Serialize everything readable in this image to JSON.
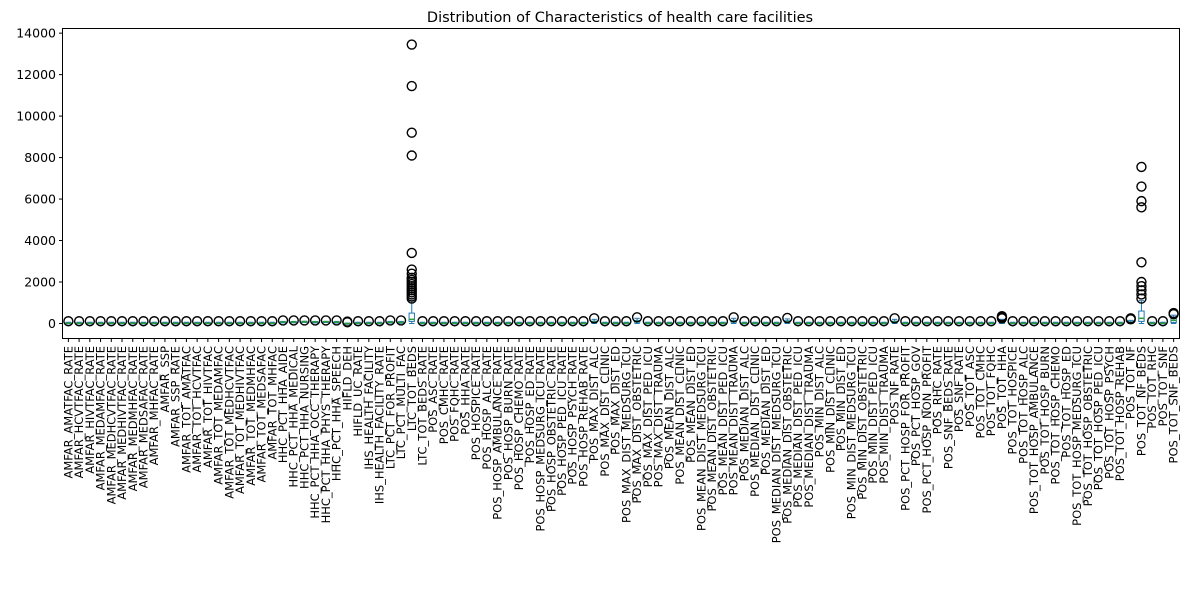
{
  "chart_data": {
    "type": "box",
    "title": "Distribution of Characteristics of health care facilities",
    "xlabel": "",
    "ylabel": "",
    "ylim": [
      -700,
      14200
    ],
    "yticks": [
      0,
      2000,
      4000,
      6000,
      8000,
      10000,
      12000,
      14000
    ],
    "yticklabels": [
      "0",
      "2000",
      "4000",
      "6000",
      "8000",
      "10000",
      "12000",
      "14000"
    ],
    "grid": false,
    "colors": {
      "box": "#1f77b4",
      "median": "#2ca02c",
      "flier": "#000000",
      "axis": "#000000"
    },
    "categories": [
      "AMFAR_AMATFAC_RATE",
      "AMFAR_HCVTFAC_RATE",
      "AMFAR_HIVTFAC_RATE",
      "AMFAR_MEDAMFAC_RATE",
      "AMFAR_MEDHCVTFAC_RATE",
      "AMFAR_MEDHIVTFAC_RATE",
      "AMFAR_MEDMHFAC_RATE",
      "AMFAR_MEDSAFAC_RATE",
      "AMFAR_MHFAC_RATE",
      "AMFAR_SSP",
      "AMFAR_SSP_RATE",
      "AMFAR_TOT_AMATFAC",
      "AMFAR_TOT_HCVTFAC",
      "AMFAR_TOT_HIVTFAC",
      "AMFAR_TOT_MEDAMFAC",
      "AMFAR_TOT_MEDHCVTFAC",
      "AMFAR_TOT_MEDHIVTFAC",
      "AMFAR_TOT_MEDMHFAC",
      "AMFAR_TOT_MEDSAFAC",
      "AMFAR_TOT_MHFAC",
      "HHC_PCT_HHA_AIDE",
      "HHC_PCT_HHA_MEDICAL",
      "HHC_PCT_HHA_NURSING",
      "HHC_PCT_HHA_OCC_THERAPY",
      "HHC_PCT_HHA_PHYS_THERAPY",
      "HHC_PCT_HHA_SPEECH",
      "HIFLD_DEH",
      "HIFLD_UC_RATE",
      "IHS_HEALTH_FACILITY",
      "IHS_HEALTH_FACILITY_RATE",
      "LTC_PCT_FOR_PROFIT",
      "LTC_PCT_MULTI_FAC",
      "LTC_TOT_BEDS",
      "LTC_TOT_BEDS_RATE",
      "POS_ASC_RATE",
      "POS_CMHC_RATE",
      "POS_FQHC_RATE",
      "POS_HHA_RATE",
      "POS_HOSPICE_RATE",
      "POS_HOSP_ALC_RATE",
      "POS_HOSP_AMBULANCE_RATE",
      "POS_HOSP_BURN_RATE",
      "POS_HOSP_CHEMO_RATE",
      "POS_HOSP_ED_RATE",
      "POS_HOSP_MEDSURG_ICU_RATE",
      "POS_HOSP_OBSTETRIC_RATE",
      "POS_HOSP_PED_ICU_RATE",
      "POS_HOSP_PSYCH_RATE",
      "POS_HOSP_REHAB_RATE",
      "POS_MAX_DIST_ALC",
      "POS_MAX_DIST_CLINIC",
      "POS_MAX_DIST_ED",
      "POS_MAX_DIST_MEDSURG_ICU",
      "POS_MAX_DIST_OBSTETRIC",
      "POS_MAX_DIST_PED_ICU",
      "POS_MAX_DIST_TRAUMA",
      "POS_MEAN_DIST_ALC",
      "POS_MEAN_DIST_CLINIC",
      "POS_MEAN_DIST_ED",
      "POS_MEAN_DIST_MEDSURG_ICU",
      "POS_MEAN_DIST_OBSTETRIC",
      "POS_MEAN_DIST_PED_ICU",
      "POS_MEAN_DIST_TRAUMA",
      "POS_MEDIAN_DIST_ALC",
      "POS_MEDIAN_DIST_CLINIC",
      "POS_MEDIAN_DIST_ED",
      "POS_MEDIAN_DIST_MEDSURG_ICU",
      "POS_MEDIAN_DIST_OBSTETRIC",
      "POS_MEDIAN_DIST_PED_ICU",
      "POS_MEDIAN_DIST_TRAUMA",
      "POS_MIN_DIST_ALC",
      "POS_MIN_DIST_CLINIC",
      "POS_MIN_DIST_ED",
      "POS_MIN_DIST_MEDSURG_ICU",
      "POS_MIN_DIST_OBSTETRIC",
      "POS_MIN_DIST_PED_ICU",
      "POS_MIN_DIST_TRAUMA",
      "POS_NF_RATE",
      "POS_PCT_HOSP_FOR_PROFIT",
      "POS_PCT_HOSP_GOV",
      "POS_PCT_HOSP_NON_PROFIT",
      "POS_RHC_RATE",
      "POS_SNF_BEDS_RATE",
      "POS_SNF_RATE",
      "POS_TOT_ASC",
      "POS_TOT_CMHC",
      "POS_TOT_FQHC",
      "POS_TOT_HHA",
      "POS_TOT_HOSPICE",
      "POS_TOT_HOSP_ALC",
      "POS_TOT_HOSP_AMBULANCE",
      "POS_TOT_HOSP_BURN",
      "POS_TOT_HOSP_CHEMO",
      "POS_TOT_HOSP_ED",
      "POS_TOT_HOSP_MEDSURG_ICU",
      "POS_TOT_HOSP_OBSTETRIC",
      "POS_TOT_HOSP_PED_ICU",
      "POS_TOT_HOSP_PSYCH",
      "POS_TOT_HOSP_REHAB",
      "POS_TOT_NF",
      "POS_TOT_NF_BEDS",
      "POS_TOT_RHC",
      "POS_TOT_SNF",
      "POS_TOT_SNF_BEDS"
    ],
    "boxes": {
      "default": {
        "q1": 0,
        "median": 10,
        "q3": 30,
        "whisker_low": 0,
        "whisker_high": 60,
        "fliers": []
      },
      "HHC_PCT_HHA_AIDE": {
        "q1": 60,
        "median": 70,
        "q3": 80,
        "whisker_low": 40,
        "whisker_high": 100,
        "fliers": []
      },
      "HHC_PCT_HHA_MEDICAL": {
        "q1": 55,
        "median": 70,
        "q3": 85,
        "whisker_low": 40,
        "whisker_high": 100,
        "fliers": []
      },
      "HHC_PCT_HHA_NURSING": {
        "q1": 90,
        "median": 95,
        "q3": 100,
        "whisker_low": 80,
        "whisker_high": 100,
        "fliers": []
      },
      "HHC_PCT_HHA_OCC_THERAPY": {
        "q1": 60,
        "median": 75,
        "q3": 90,
        "whisker_low": 30,
        "whisker_high": 100,
        "fliers": []
      },
      "HHC_PCT_HHA_PHYS_THERAPY": {
        "q1": 80,
        "median": 90,
        "q3": 95,
        "whisker_low": 60,
        "whisker_high": 100,
        "fliers": []
      },
      "HHC_PCT_HHA_SPEECH": {
        "q1": 50,
        "median": 65,
        "q3": 80,
        "whisker_low": 20,
        "whisker_high": 100,
        "fliers": []
      },
      "HIFLD_DEH": {
        "q1": 0,
        "median": 0,
        "q3": 10,
        "whisker_low": 0,
        "whisker_high": 20,
        "fliers": [
          60,
          90
        ]
      },
      "LTC_PCT_FOR_PROFIT": {
        "q1": 50,
        "median": 65,
        "q3": 80,
        "whisker_low": 20,
        "whisker_high": 100,
        "fliers": []
      },
      "LTC_PCT_MULTI_FAC": {
        "q1": 40,
        "median": 55,
        "q3": 70,
        "whisker_low": 10,
        "whisker_high": 100,
        "fliers": []
      },
      "LTC_TOT_BEDS": {
        "q1": 100,
        "median": 200,
        "q3": 500,
        "whisker_low": 0,
        "whisker_high": 1100,
        "fliers": [
          1200,
          1300,
          1400,
          1500,
          1600,
          1700,
          1800,
          1900,
          2000,
          2100,
          2200,
          2400,
          2600,
          3400,
          8100,
          9200,
          11450,
          13450
        ]
      },
      "POS_MAX_DIST_ALC": {
        "q1": 40,
        "median": 70,
        "q3": 110,
        "whisker_low": 0,
        "whisker_high": 200,
        "fliers": []
      },
      "POS_MAX_DIST_OBSTETRIC": {
        "q1": 60,
        "median": 100,
        "q3": 150,
        "whisker_low": 0,
        "whisker_high": 250,
        "fliers": []
      },
      "POS_MEAN_DIST_TRAUMA": {
        "q1": 60,
        "median": 100,
        "q3": 150,
        "whisker_low": 0,
        "whisker_high": 250,
        "fliers": []
      },
      "POS_MEDIAN_DIST_OBSTETRIC": {
        "q1": 40,
        "median": 80,
        "q3": 130,
        "whisker_low": 0,
        "whisker_high": 220,
        "fliers": []
      },
      "POS_NF_RATE": {
        "q1": 40,
        "median": 70,
        "q3": 110,
        "whisker_low": 0,
        "whisker_high": 200,
        "fliers": []
      },
      "POS_TOT_HHA": {
        "q1": 20,
        "median": 60,
        "q3": 120,
        "whisker_low": 0,
        "whisker_high": 200,
        "fliers": [
          250,
          300,
          350
        ]
      },
      "POS_TOT_NF": {
        "q1": 20,
        "median": 40,
        "q3": 80,
        "whisker_low": 0,
        "whisker_high": 150,
        "fliers": [
          200,
          250
        ]
      },
      "POS_TOT_NF_BEDS": {
        "q1": 100,
        "median": 250,
        "q3": 600,
        "whisker_low": 0,
        "whisker_high": 1100,
        "fliers": [
          1200,
          1400,
          1600,
          1800,
          2000,
          2950,
          5600,
          5900,
          6600,
          7550
        ]
      },
      "POS_TOT_SNF_BEDS": {
        "q1": 50,
        "median": 150,
        "q3": 300,
        "whisker_low": 0,
        "whisker_high": 400,
        "fliers": [
          450,
          500
        ]
      }
    }
  }
}
